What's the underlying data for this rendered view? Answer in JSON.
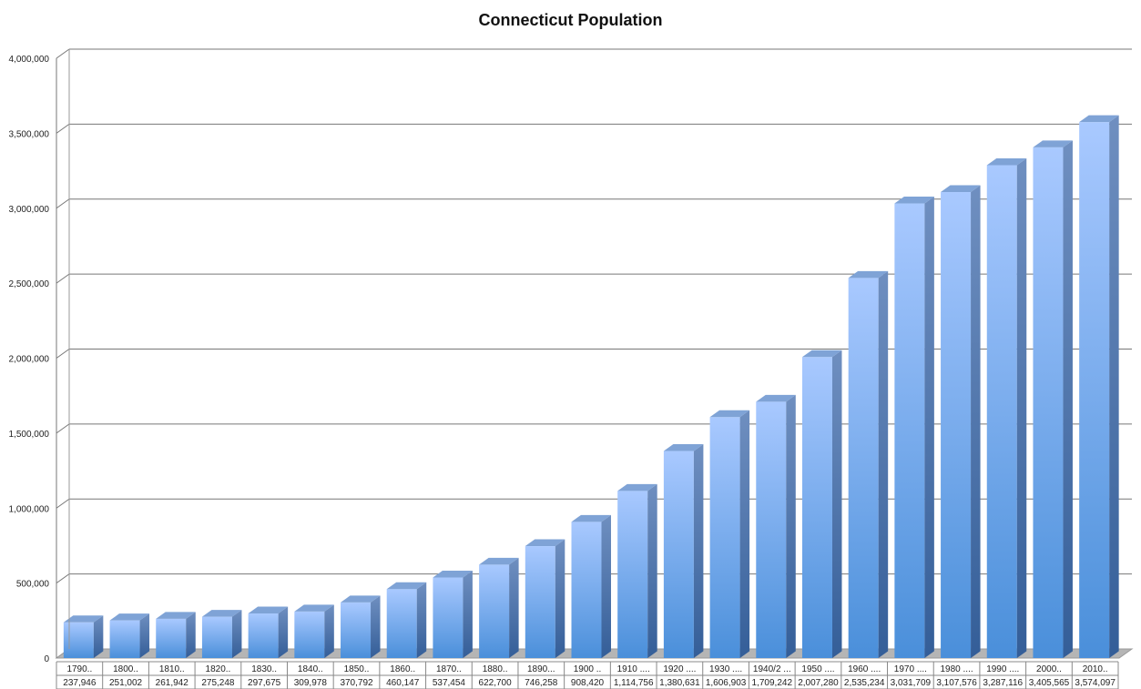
{
  "chart_data": {
    "type": "bar",
    "title": "Connecticut Population",
    "xlabel": "",
    "ylabel": "",
    "ylim": [
      0,
      4000000
    ],
    "yticks": [
      "0",
      "500,000",
      "1,000,000",
      "1,500,000",
      "2,000,000",
      "2,500,000",
      "3,000,000",
      "3,500,000",
      "4,000,000"
    ],
    "ytick_values": [
      0,
      500000,
      1000000,
      1500000,
      2000000,
      2500000,
      3000000,
      3500000,
      4000000
    ],
    "grid": true,
    "style": "3d-column",
    "colors": {
      "bar_top": "#a9c9ff",
      "bar_bottom": "#4a8fda",
      "bar_side": "#3d6aa8",
      "bar_cap": "#7fa3d6",
      "floor": "#b5b5b5",
      "grid": "#777777"
    },
    "categories": [
      "1790..",
      "1800..",
      "1810..",
      "1820..",
      "1830..",
      "1840..",
      "1850..",
      "1860..",
      "1870..",
      "1880..",
      "1890...",
      "1900 ..",
      "1910 ....",
      "1920 ....",
      "1930 ....",
      "1940/2 ...",
      "1950 ....",
      "1960 ....",
      "1970 ....",
      "1980 ....",
      "1990 ....",
      "2000..",
      "2010.."
    ],
    "value_labels": [
      "237,946",
      "251,002",
      "261,942",
      "275,248",
      "297,675",
      "309,978",
      "370,792",
      "460,147",
      "537,454",
      "622,700",
      "746,258",
      "908,420",
      "1,114,756",
      "1,380,631",
      "1,606,903",
      "1,709,242",
      "2,007,280",
      "2,535,234",
      "3,031,709",
      "3,107,576",
      "3,287,116",
      "3,405,565",
      "3,574,097"
    ],
    "values": [
      237946,
      251002,
      261942,
      275248,
      297675,
      309978,
      370792,
      460147,
      537454,
      622700,
      746258,
      908420,
      1114756,
      1380631,
      1606903,
      1709242,
      2007280,
      2535234,
      3031709,
      3107576,
      3287116,
      3405565,
      3574097
    ]
  }
}
